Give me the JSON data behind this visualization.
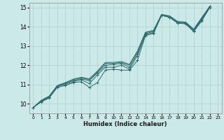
{
  "xlabel": "Humidex (Indice chaleur)",
  "xlim": [
    -0.5,
    23.5
  ],
  "ylim": [
    9.5,
    15.25
  ],
  "xticks": [
    0,
    1,
    2,
    3,
    4,
    5,
    6,
    7,
    8,
    9,
    10,
    11,
    12,
    13,
    14,
    15,
    16,
    17,
    18,
    19,
    20,
    21,
    22,
    23
  ],
  "yticks": [
    10,
    11,
    12,
    13,
    14,
    15
  ],
  "bg_color": "#cce9e9",
  "grid_color": "#afd0d0",
  "line_color": "#2e6b6b",
  "lines": [
    {
      "y": [
        9.8,
        10.1,
        10.3,
        10.85,
        10.95,
        11.1,
        11.15,
        10.85,
        11.1,
        11.75,
        11.8,
        11.75,
        11.75,
        12.25,
        13.55,
        13.65,
        14.6,
        14.5,
        14.2,
        14.15,
        13.75,
        14.3,
        15.0
      ],
      "marker": true
    },
    {
      "y": [
        9.8,
        10.12,
        10.32,
        10.9,
        11.0,
        11.15,
        11.25,
        11.05,
        11.5,
        11.9,
        11.9,
        12.0,
        11.8,
        12.5,
        13.6,
        13.7,
        14.6,
        14.5,
        14.2,
        14.2,
        13.8,
        14.35,
        15.0
      ],
      "marker": true
    },
    {
      "y": [
        9.8,
        10.15,
        10.35,
        10.9,
        11.05,
        11.2,
        11.3,
        11.2,
        11.6,
        12.0,
        12.05,
        12.1,
        11.9,
        12.6,
        13.65,
        13.75,
        14.6,
        14.5,
        14.2,
        14.2,
        13.8,
        14.4,
        15.05
      ],
      "marker": true
    },
    {
      "y": [
        9.8,
        10.15,
        10.38,
        10.92,
        11.08,
        11.25,
        11.35,
        11.25,
        11.65,
        12.1,
        12.1,
        12.15,
        12.0,
        12.7,
        13.7,
        13.8,
        14.62,
        14.55,
        14.25,
        14.22,
        13.85,
        14.45,
        15.05
      ],
      "marker": false
    },
    {
      "y": [
        9.8,
        10.18,
        10.4,
        10.95,
        11.1,
        11.28,
        11.38,
        11.3,
        11.7,
        12.15,
        12.15,
        12.2,
        12.05,
        12.75,
        13.72,
        13.82,
        14.65,
        14.57,
        14.28,
        14.25,
        13.88,
        14.48,
        15.07
      ],
      "marker": false
    }
  ]
}
